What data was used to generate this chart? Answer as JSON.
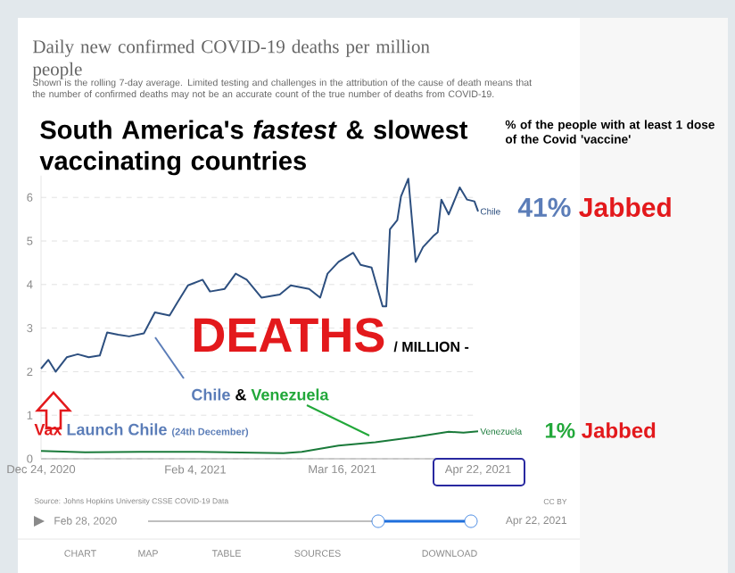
{
  "chart_data": {
    "type": "line",
    "title": "Daily new confirmed COVID-19 deaths per million people",
    "subtitle": "Shown is the rolling 7-day average. Limited testing and challenges in the attribution of the cause of death means that the number of confirmed deaths may not be an accurate count of the true number of deaths from COVID-19.",
    "xlim": [
      "2020-12-24",
      "2021-04-22"
    ],
    "xticks": [
      {
        "value": "2020-12-24",
        "label": "Dec 24, 2020"
      },
      {
        "value": "2021-02-04",
        "label": "Feb 4, 2021"
      },
      {
        "value": "2021-03-16",
        "label": "Mar 16, 2021"
      },
      {
        "value": "2021-04-22",
        "label": "Apr 22, 2021"
      }
    ],
    "ylim": [
      0,
      6.5
    ],
    "yticks": [
      0,
      1,
      2,
      3,
      4,
      5,
      6
    ],
    "grid": "y",
    "series": [
      {
        "name": "Chile",
        "color": "#2d4f7f",
        "x": [
          "2020-12-24",
          "2020-12-26",
          "2020-12-28",
          "2020-12-31",
          "2021-01-03",
          "2021-01-06",
          "2021-01-09",
          "2021-01-11",
          "2021-01-14",
          "2021-01-17",
          "2021-01-21",
          "2021-01-24",
          "2021-01-28",
          "2021-01-30",
          "2021-02-02",
          "2021-02-06",
          "2021-02-08",
          "2021-02-12",
          "2021-02-15",
          "2021-02-18",
          "2021-02-22",
          "2021-02-27",
          "2021-03-02",
          "2021-03-07",
          "2021-03-10",
          "2021-03-12",
          "2021-03-15",
          "2021-03-19",
          "2021-03-21",
          "2021-03-24",
          "2021-03-27",
          "2021-03-28",
          "2021-03-29",
          "2021-03-31",
          "2021-04-01",
          "2021-04-03",
          "2021-04-05",
          "2021-04-07",
          "2021-04-10",
          "2021-04-11",
          "2021-04-12",
          "2021-04-14",
          "2021-04-17",
          "2021-04-19",
          "2021-04-21",
          "2021-04-22"
        ],
        "values": [
          2.07,
          2.27,
          2.0,
          2.33,
          2.4,
          2.33,
          2.37,
          2.9,
          2.85,
          2.81,
          2.88,
          3.36,
          3.29,
          3.57,
          3.98,
          4.11,
          3.84,
          3.9,
          4.25,
          4.11,
          3.7,
          3.77,
          3.98,
          3.9,
          3.7,
          4.25,
          4.52,
          4.73,
          4.45,
          4.39,
          3.5,
          3.5,
          5.27,
          5.48,
          6.02,
          6.43,
          4.52,
          4.86,
          5.13,
          5.2,
          5.95,
          5.61,
          6.23,
          5.95,
          5.91,
          5.68
        ]
      },
      {
        "name": "Venezuela",
        "color": "#1a7a3a",
        "x": [
          "2020-12-24",
          "2021-01-05",
          "2021-01-20",
          "2021-02-05",
          "2021-02-28",
          "2021-03-05",
          "2021-03-15",
          "2021-03-25",
          "2021-04-05",
          "2021-04-14",
          "2021-04-18",
          "2021-04-22"
        ],
        "values": [
          0.18,
          0.15,
          0.16,
          0.16,
          0.13,
          0.16,
          0.3,
          0.38,
          0.5,
          0.62,
          0.6,
          0.63
        ]
      }
    ],
    "annotations": [
      "South America's *fastest* & slowest vaccinating countries",
      "% of the people with at least 1 dose of the Covid 'vaccine'",
      "41%",
      "Jabbed",
      "DEATHS",
      "/ MILLION -",
      "Chile",
      "&",
      "Venezuela",
      "Vax",
      "Launch Chile",
      "(24th December)",
      "1%",
      "Jabbed",
      "Source: Johns Hopkins University CSSE COVID-19 Data",
      "CC BY",
      "Feb 28, 2020",
      "Apr 22, 2021",
      "CHART",
      "MAP",
      "TABLE",
      "SOURCES",
      "DOWNLOAD"
    ]
  }
}
